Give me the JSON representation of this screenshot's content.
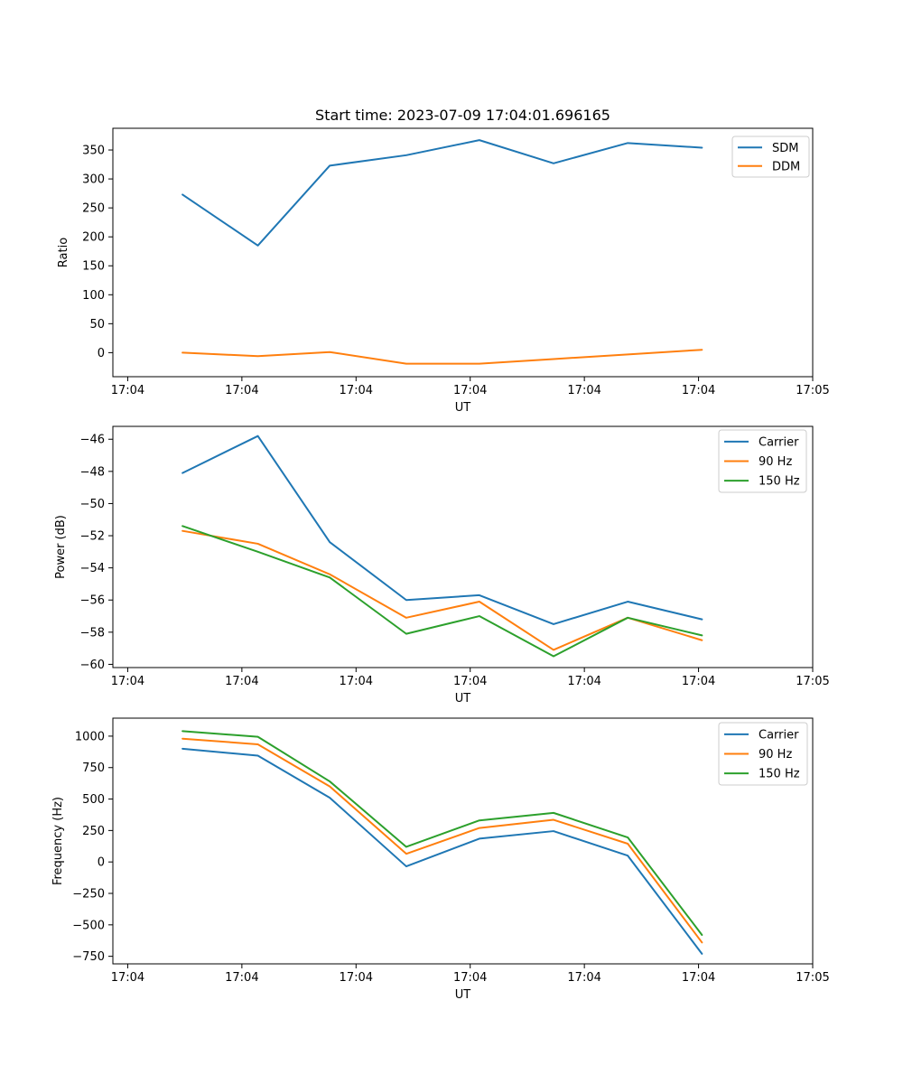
{
  "figure": {
    "title": "Start time: 2023-07-09 17:04:01.696165",
    "background": "#ffffff"
  },
  "palette": {
    "blue": "#1f77b4",
    "orange": "#ff7f0e",
    "green": "#2ca02c",
    "legend_border": "#cccccc",
    "axis": "#000000"
  },
  "chart_data": [
    {
      "id": "ratio",
      "type": "line",
      "title": "Start time: 2023-07-09 17:04:01.696165",
      "xlabel": "UT",
      "ylabel": "Ratio",
      "legend_position": "upper right",
      "grid": false,
      "x_tick_labels": [
        "17:04",
        "17:04",
        "17:04",
        "17:04",
        "17:04",
        "17:04",
        "17:05"
      ],
      "x_tick_seconds": [
        0,
        10,
        20,
        30,
        40,
        50,
        60
      ],
      "xlim_seconds": [
        -1.3,
        60.0
      ],
      "y_ticks": [
        0,
        50,
        100,
        150,
        200,
        250,
        300,
        350
      ],
      "ylim": [
        -41.5,
        387.5
      ],
      "x_seconds": [
        4.8,
        11.4,
        17.7,
        24.4,
        30.8,
        37.3,
        43.8,
        50.3
      ],
      "series": [
        {
          "name": "SDM",
          "color": "#1f77b4",
          "values": [
            273,
            185,
            323,
            341,
            367,
            327,
            362,
            354
          ]
        },
        {
          "name": "DDM",
          "color": "#ff7f0e",
          "values": [
            0,
            -6,
            1,
            -19,
            -19,
            -11,
            -3,
            5
          ]
        }
      ]
    },
    {
      "id": "power",
      "type": "line",
      "title": "",
      "xlabel": "UT",
      "ylabel": "Power (dB)",
      "legend_position": "upper right",
      "grid": false,
      "x_tick_labels": [
        "17:04",
        "17:04",
        "17:04",
        "17:04",
        "17:04",
        "17:04",
        "17:05"
      ],
      "x_tick_seconds": [
        0,
        10,
        20,
        30,
        40,
        50,
        60
      ],
      "xlim_seconds": [
        -1.3,
        60.0
      ],
      "y_ticks": [
        -60,
        -58,
        -56,
        -54,
        -52,
        -50,
        -48,
        -46
      ],
      "ylim": [
        -60.2,
        -45.2
      ],
      "x_seconds": [
        4.8,
        11.4,
        17.7,
        24.4,
        30.8,
        37.3,
        43.8,
        50.3
      ],
      "series": [
        {
          "name": "Carrier",
          "color": "#1f77b4",
          "values": [
            -48.1,
            -45.8,
            -52.4,
            -56.0,
            -55.7,
            -57.5,
            -56.1,
            -57.2
          ]
        },
        {
          "name": "90 Hz",
          "color": "#ff7f0e",
          "values": [
            -51.7,
            -52.5,
            -54.4,
            -57.1,
            -56.1,
            -59.1,
            -57.1,
            -58.5
          ]
        },
        {
          "name": "150 Hz",
          "color": "#2ca02c",
          "values": [
            -51.4,
            -53.0,
            -54.6,
            -58.1,
            -57.0,
            -59.5,
            -57.1,
            -58.2
          ]
        }
      ]
    },
    {
      "id": "frequency",
      "type": "line",
      "title": "",
      "xlabel": "UT",
      "ylabel": "Frequency (Hz)",
      "legend_position": "upper right",
      "grid": false,
      "x_tick_labels": [
        "17:04",
        "17:04",
        "17:04",
        "17:04",
        "17:04",
        "17:04",
        "17:05"
      ],
      "x_tick_seconds": [
        0,
        10,
        20,
        30,
        40,
        50,
        60
      ],
      "xlim_seconds": [
        -1.3,
        60.0
      ],
      "y_ticks": [
        -750,
        -500,
        -250,
        0,
        250,
        500,
        750,
        1000
      ],
      "ylim": [
        -810,
        1143
      ],
      "x_seconds": [
        4.8,
        11.4,
        17.7,
        24.4,
        30.8,
        37.3,
        43.8,
        50.3
      ],
      "series": [
        {
          "name": "Carrier",
          "color": "#1f77b4",
          "values": [
            900,
            845,
            510,
            -35,
            185,
            245,
            50,
            -730
          ]
        },
        {
          "name": "90 Hz",
          "color": "#ff7f0e",
          "values": [
            980,
            935,
            600,
            65,
            270,
            335,
            145,
            -640
          ]
        },
        {
          "name": "150 Hz",
          "color": "#2ca02c",
          "values": [
            1040,
            995,
            640,
            120,
            330,
            390,
            195,
            -580
          ]
        }
      ]
    }
  ]
}
